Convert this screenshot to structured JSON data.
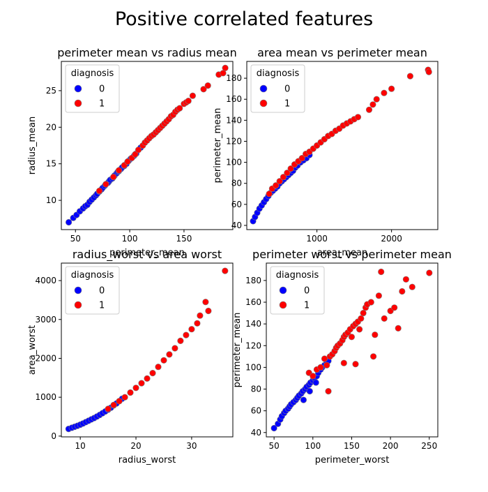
{
  "suptitle": "Positive correlated features",
  "colors": {
    "class_0": "#0000ff",
    "class_1": "#ff0000",
    "edge": "#808080"
  },
  "chart_data": [
    {
      "type": "scatter",
      "title": "perimeter mean vs radius mean",
      "xlabel": "perimeter_mean",
      "ylabel": "radius_mean",
      "xlim": [
        37,
        195
      ],
      "ylim": [
        6,
        29
      ],
      "xticks": [
        50,
        100,
        150
      ],
      "yticks": [
        10,
        15,
        20,
        25
      ],
      "legend": {
        "title": "diagnosis",
        "entries": [
          "0",
          "1"
        ],
        "placement": "upper-left"
      },
      "series": [
        {
          "label": "0",
          "color": "#0000ff",
          "points": [
            [
              43.8,
              7.0
            ],
            [
              48,
              7.6
            ],
            [
              51,
              8.0
            ],
            [
              54,
              8.5
            ],
            [
              57,
              8.9
            ],
            [
              59,
              9.2
            ],
            [
              61,
              9.4
            ],
            [
              63,
              9.8
            ],
            [
              65,
              10.1
            ],
            [
              67,
              10.4
            ],
            [
              69,
              10.7
            ],
            [
              70,
              10.9
            ],
            [
              72,
              11.2
            ],
            [
              74,
              11.5
            ],
            [
              75,
              11.7
            ],
            [
              77,
              12.0
            ],
            [
              78,
              12.2
            ],
            [
              80,
              12.4
            ],
            [
              81,
              12.6
            ],
            [
              82,
              12.8
            ],
            [
              84,
              13.0
            ],
            [
              85,
              13.2
            ],
            [
              86,
              13.4
            ],
            [
              88,
              13.7
            ],
            [
              89,
              13.9
            ],
            [
              90,
              14.0
            ],
            [
              92,
              14.3
            ],
            [
              93,
              14.5
            ],
            [
              95,
              14.7
            ],
            [
              97,
              15.0
            ],
            [
              99,
              15.4
            ],
            [
              101,
              15.7
            ],
            [
              104,
              16.1
            ],
            [
              106,
              16.4
            ],
            [
              110,
              17.2
            ]
          ]
        },
        {
          "label": "1",
          "color": "#ff0000",
          "points": [
            [
              72,
              11.3
            ],
            [
              78,
              12.2
            ],
            [
              85,
              13.2
            ],
            [
              90,
              14.1
            ],
            [
              95,
              14.8
            ],
            [
              98,
              15.3
            ],
            [
              102,
              15.8
            ],
            [
              105,
              16.3
            ],
            [
              108,
              16.9
            ],
            [
              112,
              17.5
            ],
            [
              114,
              17.9
            ],
            [
              116,
              18.2
            ],
            [
              118,
              18.5
            ],
            [
              120,
              18.8
            ],
            [
              122,
              19.0
            ],
            [
              124,
              19.3
            ],
            [
              126,
              19.6
            ],
            [
              128,
              19.9
            ],
            [
              130,
              20.2
            ],
            [
              132,
              20.5
            ],
            [
              134,
              20.8
            ],
            [
              136,
              21.1
            ],
            [
              138,
              21.5
            ],
            [
              140,
              21.7
            ],
            [
              142,
              22.1
            ],
            [
              144,
              22.4
            ],
            [
              146,
              22.6
            ],
            [
              150,
              23.2
            ],
            [
              152,
              23.4
            ],
            [
              154,
              23.6
            ],
            [
              158,
              24.3
            ],
            [
              168,
              25.2
            ],
            [
              172,
              25.7
            ],
            [
              182,
              27.2
            ],
            [
              186,
              27.4
            ],
            [
              188,
              28.1
            ]
          ]
        }
      ]
    },
    {
      "type": "scatter",
      "title": "area mean vs perimeter mean",
      "xlabel": "area_mean",
      "ylabel": "perimeter_mean",
      "xlim": [
        60,
        2620
      ],
      "ylim": [
        36,
        196
      ],
      "xticks": [
        1000,
        2000
      ],
      "yticks": [
        40,
        60,
        80,
        100,
        120,
        140,
        160,
        180
      ],
      "legend": {
        "title": "diagnosis",
        "entries": [
          "0",
          "1"
        ],
        "placement": "upper-left"
      },
      "series": [
        {
          "label": "0",
          "color": "#0000ff",
          "points": [
            [
              144,
              44
            ],
            [
              170,
              48
            ],
            [
              200,
              52
            ],
            [
              230,
              56
            ],
            [
              260,
              59
            ],
            [
              290,
              62
            ],
            [
              320,
              65
            ],
            [
              350,
              68
            ],
            [
              380,
              71
            ],
            [
              410,
              73
            ],
            [
              440,
              75
            ],
            [
              470,
              77
            ],
            [
              500,
              80
            ],
            [
              530,
              82
            ],
            [
              560,
              84
            ],
            [
              590,
              86
            ],
            [
              620,
              88
            ],
            [
              650,
              90
            ],
            [
              680,
              92
            ],
            [
              710,
              95
            ],
            [
              740,
              97
            ],
            [
              780,
              100
            ],
            [
              820,
              102
            ],
            [
              860,
              104
            ],
            [
              900,
              107
            ]
          ]
        },
        {
          "label": "1",
          "color": "#ff0000",
          "points": [
            [
              360,
              70
            ],
            [
              400,
              75
            ],
            [
              450,
              78
            ],
            [
              500,
              82
            ],
            [
              550,
              86
            ],
            [
              600,
              90
            ],
            [
              650,
              94
            ],
            [
              700,
              98
            ],
            [
              750,
              101
            ],
            [
              800,
              104
            ],
            [
              850,
              108
            ],
            [
              900,
              110
            ],
            [
              950,
              113
            ],
            [
              1000,
              116
            ],
            [
              1050,
              119
            ],
            [
              1100,
              122
            ],
            [
              1150,
              125
            ],
            [
              1200,
              127
            ],
            [
              1250,
              130
            ],
            [
              1300,
              132
            ],
            [
              1350,
              135
            ],
            [
              1400,
              137
            ],
            [
              1450,
              139
            ],
            [
              1500,
              141
            ],
            [
              1550,
              143
            ],
            [
              1700,
              150
            ],
            [
              1750,
              155
            ],
            [
              1800,
              160
            ],
            [
              1900,
              166
            ],
            [
              2000,
              170
            ],
            [
              2250,
              182
            ],
            [
              2490,
              188
            ],
            [
              2500,
              186
            ]
          ]
        }
      ]
    },
    {
      "type": "scatter",
      "title": "radius_worst vs area worst",
      "xlabel": "radius_worst",
      "ylabel": "area_worst",
      "xlim": [
        6.6,
        37.4
      ],
      "ylim": [
        -20,
        4450
      ],
      "xticks": [
        10,
        20,
        30
      ],
      "yticks": [
        0,
        1000,
        2000,
        3000,
        4000
      ],
      "legend": {
        "title": "diagnosis",
        "entries": [
          "0",
          "1"
        ],
        "placement": "upper-left"
      },
      "series": [
        {
          "label": "0",
          "color": "#0000ff",
          "points": [
            [
              7.9,
              185
            ],
            [
              8.5,
              215
            ],
            [
              9,
              240
            ],
            [
              9.5,
              265
            ],
            [
              10,
              295
            ],
            [
              10.5,
              325
            ],
            [
              11,
              360
            ],
            [
              11.5,
              395
            ],
            [
              12,
              430
            ],
            [
              12.5,
              465
            ],
            [
              13,
              505
            ],
            [
              13.5,
              545
            ],
            [
              14,
              590
            ],
            [
              14.5,
              635
            ],
            [
              15,
              680
            ],
            [
              15.5,
              730
            ],
            [
              16,
              790
            ],
            [
              16.5,
              840
            ],
            [
              17,
              900
            ],
            [
              17.5,
              960
            ]
          ]
        },
        {
          "label": "1",
          "color": "#ff0000",
          "points": [
            [
              15,
              700
            ],
            [
              16,
              800
            ],
            [
              17,
              900
            ],
            [
              18,
              1000
            ],
            [
              19,
              1120
            ],
            [
              20,
              1240
            ],
            [
              21,
              1360
            ],
            [
              22,
              1480
            ],
            [
              23,
              1620
            ],
            [
              24,
              1780
            ],
            [
              25,
              1950
            ],
            [
              26,
              2100
            ],
            [
              27,
              2260
            ],
            [
              28,
              2450
            ],
            [
              29,
              2600
            ],
            [
              30,
              2750
            ],
            [
              31,
              2900
            ],
            [
              31.5,
              3100
            ],
            [
              32.5,
              3450
            ],
            [
              33,
              3220
            ],
            [
              36,
              4250
            ]
          ]
        }
      ]
    },
    {
      "type": "scatter",
      "title": "perimeter worst vs perimeter mean",
      "xlabel": "perimeter_worst",
      "ylabel": "perimeter_mean",
      "xlim": [
        40,
        261
      ],
      "ylim": [
        36,
        196
      ],
      "xticks": [
        50,
        100,
        150,
        200,
        250
      ],
      "yticks": [
        40,
        60,
        80,
        100,
        120,
        140,
        160,
        180
      ],
      "legend": {
        "title": "diagnosis",
        "entries": [
          "0",
          "1"
        ],
        "placement": "upper-left"
      },
      "series": [
        {
          "label": "0",
          "color": "#0000ff",
          "points": [
            [
              50,
              44
            ],
            [
              55,
              48
            ],
            [
              58,
              52
            ],
            [
              60,
              55
            ],
            [
              63,
              58
            ],
            [
              65,
              60
            ],
            [
              68,
              62
            ],
            [
              70,
              64
            ],
            [
              72,
              66
            ],
            [
              75,
              68
            ],
            [
              78,
              70
            ],
            [
              80,
              72
            ],
            [
              82,
              74
            ],
            [
              85,
              76
            ],
            [
              87,
              78
            ],
            [
              90,
              80
            ],
            [
              92,
              82
            ],
            [
              95,
              84
            ],
            [
              97,
              86
            ],
            [
              100,
              88
            ],
            [
              102,
              90
            ],
            [
              105,
              92
            ],
            [
              107,
              95
            ],
            [
              110,
              98
            ],
            [
              112,
              100
            ],
            [
              115,
              102
            ],
            [
              118,
              104
            ],
            [
              120,
              106
            ],
            [
              88,
              70
            ],
            [
              96,
              78
            ],
            [
              104,
              86
            ]
          ]
        },
        {
          "label": "1",
          "color": "#ff0000",
          "points": [
            [
              95,
              95
            ],
            [
              100,
              92
            ],
            [
              105,
              98
            ],
            [
              110,
              100
            ],
            [
              115,
              108
            ],
            [
              118,
              102
            ],
            [
              120,
              78
            ],
            [
              122,
              110
            ],
            [
              125,
              112
            ],
            [
              128,
              115
            ],
            [
              130,
              118
            ],
            [
              132,
              120
            ],
            [
              135,
              122
            ],
            [
              138,
              125
            ],
            [
              140,
              128
            ],
            [
              142,
              130
            ],
            [
              145,
              132
            ],
            [
              148,
              135
            ],
            [
              150,
              128
            ],
            [
              152,
              138
            ],
            [
              155,
              140
            ],
            [
              158,
              142
            ],
            [
              160,
              135
            ],
            [
              162,
              145
            ],
            [
              165,
              150
            ],
            [
              168,
              155
            ],
            [
              170,
              158
            ],
            [
              175,
              160
            ],
            [
              178,
              110
            ],
            [
              180,
              130
            ],
            [
              185,
              166
            ],
            [
              188,
              188
            ],
            [
              192,
              145
            ],
            [
              200,
              152
            ],
            [
              205,
              155
            ],
            [
              210,
              136
            ],
            [
              215,
              170
            ],
            [
              220,
              181
            ],
            [
              228,
              174
            ],
            [
              250,
              187
            ],
            [
              140,
              104
            ],
            [
              155,
              103
            ]
          ]
        }
      ]
    }
  ]
}
